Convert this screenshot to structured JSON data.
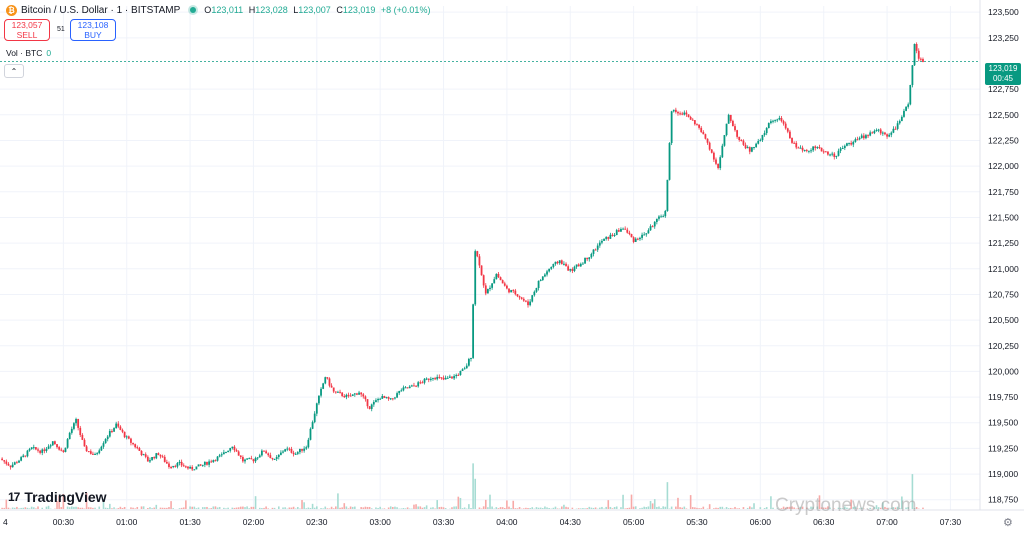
{
  "header": {
    "symbol_title": "Bitcoin / U.S. Dollar · 1 · BITSTAMP",
    "btc_icon": "₿",
    "ohlc": [
      {
        "label": "O",
        "value": "123,011"
      },
      {
        "label": "H",
        "value": "123,028"
      },
      {
        "label": "L",
        "value": "123,007"
      },
      {
        "label": "C",
        "value": "123,019"
      }
    ],
    "change": "+8 (+0.01%)"
  },
  "trade": {
    "sell_price": "123,057",
    "sell_label": "SELL",
    "spread": "51",
    "buy_price": "123,108",
    "buy_label": "BUY"
  },
  "volume_legend": {
    "label": "Vol · BTC",
    "value": "0"
  },
  "collapse_icon": "chevron-up-icon",
  "collapse_glyph": "⌃",
  "current_price": {
    "price": "123,019",
    "countdown": "00:45"
  },
  "branding": {
    "logo_mark": "17",
    "logo_text": "TradingView"
  },
  "watermark": "Cryptonews.com",
  "settings_icon": "gear-icon",
  "settings_glyph": "⚙",
  "colors": {
    "up": "#089981",
    "down": "#f23645",
    "up_volume": "#a6dcd3",
    "down_volume": "#f7a9a7",
    "grid": "#f0f3fa",
    "axis_text": "#131722",
    "price_line": "#089981"
  },
  "chart_data": {
    "type": "candlestick",
    "xlabel": "",
    "ylabel": "",
    "ylim": [
      118650,
      123560
    ],
    "yticks": [
      "123,500",
      "123,250",
      "122,750",
      "122,500",
      "122,250",
      "122,000",
      "121,750",
      "121,500",
      "121,250",
      "121,000",
      "120,750",
      "120,500",
      "120,250",
      "120,000",
      "119,750",
      "119,500",
      "119,250",
      "119,000",
      "118,750"
    ],
    "xticks": [
      "4",
      "00:30",
      "01:00",
      "01:30",
      "02:00",
      "02:30",
      "03:00",
      "03:30",
      "04:00",
      "04:30",
      "05:00",
      "05:30",
      "06:00",
      "06:30",
      "07:00",
      "07:30"
    ],
    "x_range": [
      "00:00",
      "07:44"
    ],
    "grid": true,
    "close_path": [
      [
        "00:00",
        119150
      ],
      [
        "00:05",
        119080
      ],
      [
        "00:10",
        119150
      ],
      [
        "00:15",
        119250
      ],
      [
        "00:20",
        119220
      ],
      [
        "00:25",
        119320
      ],
      [
        "00:30",
        119210
      ],
      [
        "00:33",
        119400
      ],
      [
        "00:36",
        119520
      ],
      [
        "00:40",
        119250
      ],
      [
        "00:45",
        119180
      ],
      [
        "00:50",
        119350
      ],
      [
        "00:55",
        119480
      ],
      [
        "01:00",
        119350
      ],
      [
        "01:05",
        119250
      ],
      [
        "01:10",
        119130
      ],
      [
        "01:15",
        119200
      ],
      [
        "01:20",
        119080
      ],
      [
        "01:25",
        119100
      ],
      [
        "01:30",
        119050
      ],
      [
        "01:35",
        119080
      ],
      [
        "01:40",
        119130
      ],
      [
        "01:45",
        119180
      ],
      [
        "01:50",
        119280
      ],
      [
        "01:55",
        119130
      ],
      [
        "02:00",
        119140
      ],
      [
        "02:05",
        119230
      ],
      [
        "02:10",
        119130
      ],
      [
        "02:15",
        119250
      ],
      [
        "02:20",
        119200
      ],
      [
        "02:25",
        119270
      ],
      [
        "02:30",
        119680
      ],
      [
        "02:34",
        119950
      ],
      [
        "02:38",
        119800
      ],
      [
        "02:45",
        119750
      ],
      [
        "02:50",
        119800
      ],
      [
        "02:55",
        119650
      ],
      [
        "03:00",
        119750
      ],
      [
        "03:05",
        119720
      ],
      [
        "03:10",
        119820
      ],
      [
        "03:15",
        119850
      ],
      [
        "03:20",
        119900
      ],
      [
        "03:25",
        119950
      ],
      [
        "03:30",
        119920
      ],
      [
        "03:35",
        119950
      ],
      [
        "03:40",
        120020
      ],
      [
        "03:43",
        120150
      ],
      [
        "03:45",
        121180
      ],
      [
        "03:47",
        121050
      ],
      [
        "03:50",
        120750
      ],
      [
        "03:55",
        120950
      ],
      [
        "04:00",
        120800
      ],
      [
        "04:05",
        120750
      ],
      [
        "04:10",
        120650
      ],
      [
        "04:15",
        120870
      ],
      [
        "04:20",
        121000
      ],
      [
        "04:25",
        121080
      ],
      [
        "04:30",
        120980
      ],
      [
        "04:35",
        121050
      ],
      [
        "04:40",
        121150
      ],
      [
        "04:45",
        121270
      ],
      [
        "04:50",
        121330
      ],
      [
        "04:55",
        121400
      ],
      [
        "05:00",
        121280
      ],
      [
        "05:05",
        121330
      ],
      [
        "05:10",
        121450
      ],
      [
        "05:15",
        121550
      ],
      [
        "05:18",
        122550
      ],
      [
        "05:25",
        122500
      ],
      [
        "05:30",
        122400
      ],
      [
        "05:35",
        122230
      ],
      [
        "05:40",
        121980
      ],
      [
        "05:45",
        122500
      ],
      [
        "05:50",
        122250
      ],
      [
        "05:55",
        122150
      ],
      [
        "06:00",
        122250
      ],
      [
        "06:05",
        122450
      ],
      [
        "06:10",
        122450
      ],
      [
        "06:15",
        122230
      ],
      [
        "06:20",
        122150
      ],
      [
        "06:25",
        122180
      ],
      [
        "06:30",
        122150
      ],
      [
        "06:35",
        122100
      ],
      [
        "06:40",
        122200
      ],
      [
        "06:45",
        122250
      ],
      [
        "06:50",
        122300
      ],
      [
        "06:55",
        122350
      ],
      [
        "07:00",
        122300
      ],
      [
        "07:05",
        122400
      ],
      [
        "07:10",
        122600
      ],
      [
        "07:13",
        123200
      ],
      [
        "07:15",
        123050
      ],
      [
        "07:17",
        123019
      ]
    ],
    "volume": {
      "ylim": [
        0,
        70
      ],
      "spikes": [
        [
          "03:44",
          68
        ],
        [
          "03:45",
          45
        ],
        [
          "05:16",
          40
        ],
        [
          "07:12",
          52
        ]
      ]
    }
  }
}
